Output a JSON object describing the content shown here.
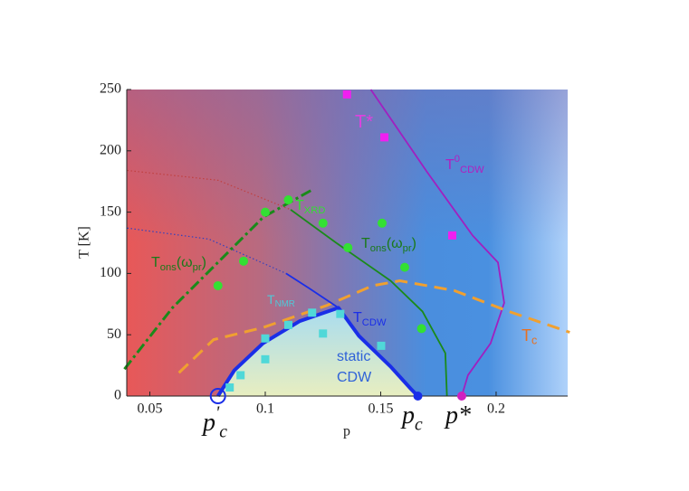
{
  "chart_data": {
    "type": "line",
    "x_label": "p",
    "y_label": "T [K]",
    "xlim": [
      0.04,
      0.231
    ],
    "ylim": [
      0,
      250
    ],
    "xticks": [
      0.05,
      0.1,
      0.15,
      0.2
    ],
    "yticks": [
      0,
      50,
      100,
      150,
      200,
      250
    ],
    "series": [
      {
        "kind": "line",
        "dash": "dotted",
        "color": "#c04040",
        "x": [
          0.0402,
          0.0795,
          0.111
        ],
        "values": [
          184,
          176,
          152
        ]
      },
      {
        "kind": "line",
        "dash": "dotted",
        "color": "#3040c0",
        "x": [
          0.0402,
          0.0756,
          0.109
        ],
        "values": [
          137,
          128,
          100
        ]
      },
      {
        "kind": "line",
        "dash": "solid",
        "color": "#a020c0",
        "x": [
          0.1457,
          0.17,
          0.1898,
          0.2008,
          0.2035,
          0.1976,
          0.1878,
          0.1851
        ],
        "values": [
          250,
          183,
          131,
          109,
          76,
          43,
          17,
          0
        ]
      },
      {
        "kind": "line",
        "dash": "dashed",
        "color": "#f0a030",
        "x": [
          0.0626,
          0.0776,
          0.0992,
          0.1268,
          0.1465,
          0.1583,
          0.1819,
          0.2055,
          0.2319
        ],
        "values": [
          19,
          46,
          56,
          74,
          90,
          94,
          86,
          69,
          52
        ]
      },
      {
        "kind": "line",
        "dash": "solid",
        "color": "#1a8a1a",
        "x": [
          0.111,
          0.1307,
          0.1543,
          0.1681,
          0.178,
          0.1787
        ],
        "values": [
          152,
          125,
          94,
          69,
          35,
          0
        ]
      },
      {
        "kind": "line",
        "dash": "dashdot",
        "color": "#1a8a1a",
        "x": [
          0.039,
          0.0598,
          0.0795,
          0.0992,
          0.1201
        ],
        "values": [
          22,
          72,
          109,
          146,
          168
        ]
      },
      {
        "kind": "line",
        "dash": "solid",
        "color": "#1a2ee8",
        "x": [
          0.109,
          0.1189,
          0.1317
        ],
        "values": [
          100,
          88,
          72
        ]
      },
      {
        "kind": "line",
        "dash": "cdw",
        "color": "#1a2ee8",
        "x": [
          0.0795,
          0.0866,
          0.099,
          0.1148,
          0.1317,
          0.1406,
          0.1543,
          0.163,
          0.1661
        ],
        "values": [
          0,
          21,
          43,
          61,
          72,
          49,
          24,
          6,
          0
        ]
      },
      {
        "kind": "scatter",
        "marker": "circle",
        "color": "#33e033",
        "x": [
          0.0795,
          0.0906,
          0.1,
          0.11,
          0.125,
          0.1358,
          0.1506,
          0.1604,
          0.1677
        ],
        "values": [
          90,
          110,
          150,
          160,
          141,
          121,
          141,
          105,
          55
        ]
      },
      {
        "kind": "scatter",
        "marker": "square",
        "color": "#f020f0",
        "x": [
          0.1354,
          0.1516,
          0.181
        ],
        "values": [
          246,
          211,
          131
        ]
      },
      {
        "kind": "scatter",
        "marker": "square",
        "color": "#50d8d8",
        "x": [
          0.0846,
          0.0893,
          0.1,
          0.1,
          0.11,
          0.1203,
          0.125,
          0.1325,
          0.1502
        ],
        "values": [
          7,
          17,
          30,
          47,
          58,
          68,
          51,
          67,
          41
        ]
      },
      {
        "kind": "scatter",
        "marker": "open-circle",
        "color": "#1a2ee8",
        "x": [
          0.0795
        ],
        "values": [
          0
        ]
      },
      {
        "kind": "scatter",
        "marker": "circle",
        "color": "#1a2ee8",
        "x": [
          0.1661
        ],
        "values": [
          0
        ]
      },
      {
        "kind": "scatter",
        "marker": "circle",
        "color": "#d020c0",
        "x": [
          0.1851
        ],
        "values": [
          0
        ]
      }
    ],
    "annotations": [
      {
        "color": "#e040e0",
        "parts": [
          {
            "t": "T*"
          }
        ]
      },
      {
        "color": "#b020c0",
        "parts": [
          {
            "t": "T"
          },
          {
            "sup": "0"
          },
          {
            "sub": "CDW"
          }
        ]
      },
      {
        "color": "#33dd33",
        "parts": [
          {
            "t": "T"
          },
          {
            "sub": "XRD"
          }
        ]
      },
      {
        "color": "#1a7a1a",
        "parts": [
          {
            "t": "T"
          },
          {
            "sub": "ons"
          },
          {
            "t": "(ω"
          },
          {
            "sub": "pr"
          },
          {
            "t": ")"
          }
        ]
      },
      {
        "color": "#1a7a1a",
        "parts": [
          {
            "t": "T"
          },
          {
            "sub": "ons"
          },
          {
            "t": "(ω"
          },
          {
            "sub": "pr"
          },
          {
            "t": ")"
          }
        ]
      },
      {
        "color": "#50c8d8",
        "parts": [
          {
            "t": "T"
          },
          {
            "sub": "NMR"
          }
        ]
      },
      {
        "color": "#1a2ee8",
        "parts": [
          {
            "t": "T"
          },
          {
            "sub": "CDW"
          }
        ]
      },
      {
        "color": "#2f62d8",
        "parts": [
          {
            "t": "static"
          }
        ]
      },
      {
        "color": "#2f62d8",
        "parts": [
          {
            "t": "CDW"
          }
        ]
      },
      {
        "color": "#e87020",
        "parts": [
          {
            "t": "T"
          },
          {
            "sub": "c"
          }
        ]
      },
      {
        "color": "#111111",
        "parts": [
          {
            "t": "p"
          },
          {
            "sup": "'"
          },
          {
            "sub": "c"
          }
        ]
      },
      {
        "color": "#111111",
        "parts": [
          {
            "t": "p"
          },
          {
            "sub": "c"
          }
        ]
      },
      {
        "color": "#111111",
        "parts": [
          {
            "t": "p*"
          }
        ]
      }
    ]
  }
}
